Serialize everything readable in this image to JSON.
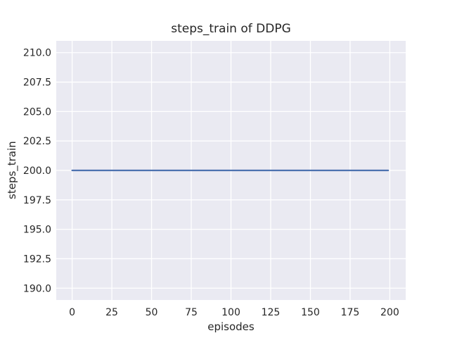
{
  "chart_data": {
    "type": "line",
    "title": "steps_train of DDPG",
    "xlabel": "episodes",
    "ylabel": "steps_train",
    "x_ticks": [
      0,
      25,
      50,
      75,
      100,
      125,
      150,
      175,
      200
    ],
    "y_ticks": [
      210.0,
      207.5,
      205.0,
      202.5,
      200.0,
      197.5,
      195.0,
      192.5,
      190.0
    ],
    "y_tick_labels": [
      "210.0",
      "207.5",
      "205.0",
      "202.5",
      "200.0",
      "197.5",
      "195.0",
      "192.5",
      "190.0"
    ],
    "xlim": [
      -10,
      210
    ],
    "ylim": [
      189,
      211
    ],
    "grid": true,
    "legend_position": "none",
    "style": "seaborn-darkgrid",
    "colors": {
      "figure_bg": "#ffffff",
      "plot_bg": "#eaeaf2",
      "grid": "#ffffff",
      "text": "#262626",
      "line": "#4c72b0"
    },
    "series": [
      {
        "name": "steps_train",
        "color": "#4c72b0",
        "x": [
          0,
          199
        ],
        "y": [
          200,
          200
        ]
      }
    ]
  }
}
